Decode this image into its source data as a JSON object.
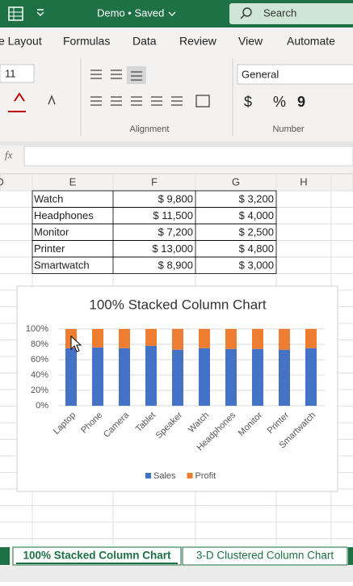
{
  "title_bar": {
    "document": "Demo • Saved",
    "search": "Search"
  },
  "ribbon": {
    "tabs": [
      "e Layout",
      "Formulas",
      "Data",
      "Review",
      "View",
      "Automate"
    ],
    "font_size": "11",
    "number_format": "General",
    "groups": [
      "Alignment",
      "Number"
    ],
    "symbols": [
      "$",
      "%",
      "9"
    ]
  },
  "formula_bar": {
    "function_label": "fx"
  },
  "sheet": {
    "columns": [
      "D",
      "E",
      "F",
      "G",
      "H"
    ],
    "rows": [
      [
        "Watch",
        "$ 9,800",
        "$ 3,200"
      ],
      [
        "Headphones",
        "$ 11,500",
        "$ 4,000"
      ],
      [
        "Monitor",
        "$ 7,200",
        "$ 2,500"
      ],
      [
        "Printer",
        "$ 13,000",
        "$ 4,800"
      ],
      [
        "Smartwatch",
        "$ 8,900",
        "$ 3,000"
      ]
    ]
  },
  "chart_data": {
    "type": "bar",
    "stacked": true,
    "title": "100% Stacked Column Chart",
    "categories": [
      "Laptop",
      "Phone",
      "Camera",
      "Tablet",
      "Speaker",
      "Watch",
      "Headphones",
      "Monitor",
      "Printer",
      "Smartwatch"
    ],
    "series": [
      {
        "name": "Sales",
        "color": "#4472c4",
        "values": [
          75,
          76,
          75,
          78,
          73,
          75,
          74,
          74,
          73,
          75
        ]
      },
      {
        "name": "Profit",
        "color": "#ed7d31",
        "values": [
          25,
          24,
          25,
          22,
          27,
          25,
          26,
          26,
          27,
          25
        ]
      }
    ],
    "ylim": [
      0,
      100
    ],
    "yticks": [
      {
        "value": 0,
        "label": "0%"
      },
      {
        "value": 20,
        "label": "20%"
      },
      {
        "value": 40,
        "label": "40%"
      },
      {
        "value": 60,
        "label": "60%"
      },
      {
        "value": 80,
        "label": "80%"
      },
      {
        "value": 100,
        "label": "100%"
      }
    ],
    "grid": true,
    "legend": "bottom"
  },
  "sheet_tabs": [
    "100% Stacked Column Chart",
    "3-D Clustered Column Chart"
  ]
}
